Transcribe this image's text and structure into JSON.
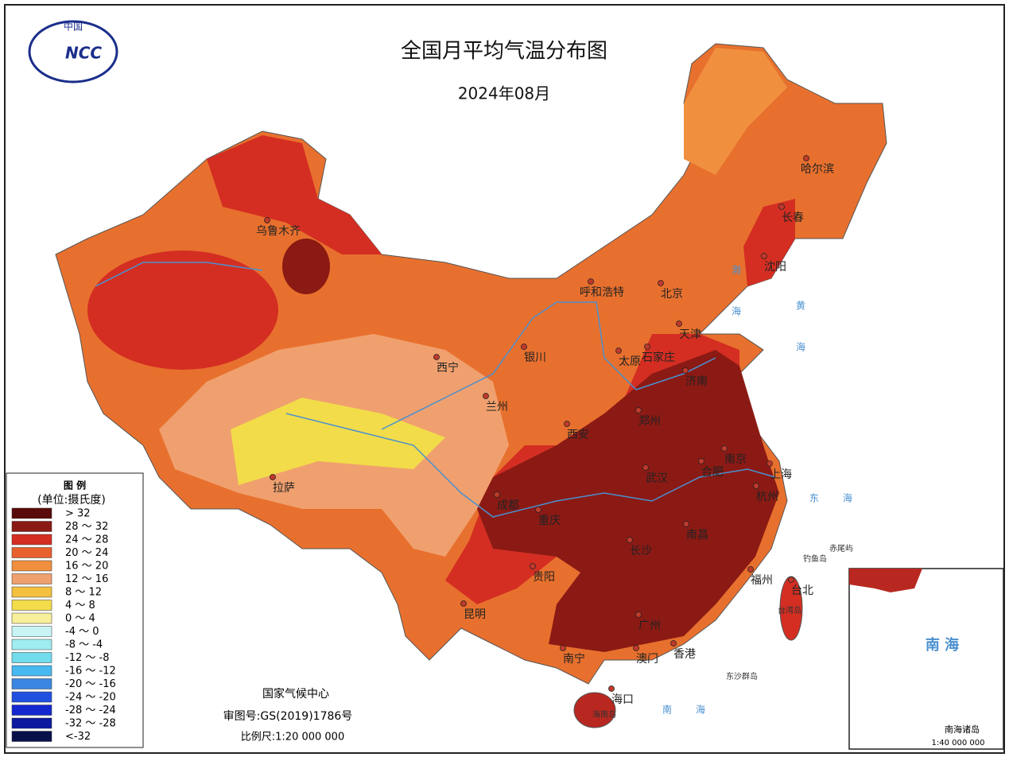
{
  "title": "全国月平均气温分布图",
  "subtitle": "2024年08月",
  "logo": {
    "top": "中国",
    "text": "NCC"
  },
  "legend": {
    "title": "图 例",
    "unit": "(单位:摄氏度)",
    "items": [
      {
        "label": "> 32",
        "color": "#5a0a0a"
      },
      {
        "label": "28 ～ 32",
        "color": "#8b1a14"
      },
      {
        "label": "24 ～ 28",
        "color": "#d42e22"
      },
      {
        "label": "20 ～ 24",
        "color": "#e8602c"
      },
      {
        "label": "16 ～ 20",
        "color": "#f0903e"
      },
      {
        "label": "12 ～ 16",
        "color": "#f0a06e"
      },
      {
        "label": "8 ～ 12",
        "color": "#f4c040"
      },
      {
        "label": "4 ～ 8",
        "color": "#f2dc4a"
      },
      {
        "label": "0 ～ 4",
        "color": "#f7ef9a"
      },
      {
        "label": "-4 ～ 0",
        "color": "#c8f4f4"
      },
      {
        "label": "-8 ～ -4",
        "color": "#a0ecf0"
      },
      {
        "label": "-12 ～ -8",
        "color": "#70dcec"
      },
      {
        "label": "-16 ～ -12",
        "color": "#48b8f0"
      },
      {
        "label": "-20 ～ -16",
        "color": "#3a86e0"
      },
      {
        "label": "-24 ～ -20",
        "color": "#2050e0"
      },
      {
        "label": "-28 ～ -24",
        "color": "#1428d0"
      },
      {
        "label": "-32 ～ -28",
        "color": "#0c1aa0"
      },
      {
        "label": "<-32",
        "color": "#08104a"
      }
    ]
  },
  "cities": [
    "乌鲁木齐",
    "呼和浩特",
    "北京",
    "天津",
    "哈尔滨",
    "长春",
    "沈阳",
    "银川",
    "太原",
    "石家庄",
    "济南",
    "西宁",
    "兰州",
    "西安",
    "郑州",
    "南京",
    "合肥",
    "上海",
    "武汉",
    "杭州",
    "成都",
    "重庆",
    "长沙",
    "南昌",
    "贵阳",
    "福州",
    "台北",
    "昆明",
    "广州",
    "南宁",
    "澳门",
    "香港",
    "海口",
    "拉萨"
  ],
  "seas": [
    "渤海",
    "黄海",
    "东海",
    "南海"
  ],
  "islands": [
    "钓鱼岛",
    "赤尾屿",
    "台湾岛",
    "东沙群岛",
    "海南岛"
  ],
  "footer": {
    "org": "国家气候中心",
    "approval": "审图号:GS(2019)1786号",
    "scale": "比例尺:1:20 000 000"
  },
  "inset": {
    "sea": "南 海",
    "title": "南海诸岛",
    "scale": "1:40 000 000"
  }
}
